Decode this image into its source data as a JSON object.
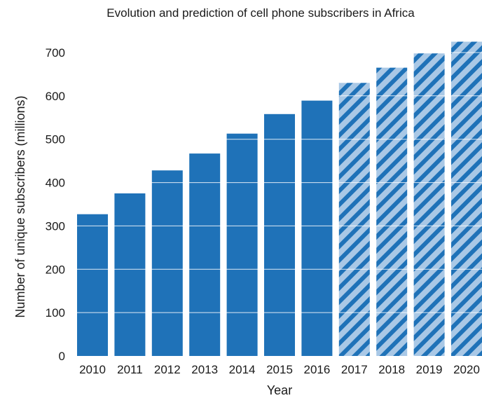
{
  "chart_data": {
    "type": "bar",
    "title": "Evolution and prediction of cell phone subscribers in Africa",
    "xlabel": "Year",
    "ylabel": "Number of unique subscribers (millions)",
    "categories": [
      "2010",
      "2011",
      "2012",
      "2013",
      "2014",
      "2015",
      "2016",
      "2017",
      "2018",
      "2019",
      "2020"
    ],
    "values": [
      327,
      375,
      428,
      467,
      513,
      558,
      589,
      630,
      665,
      698,
      725
    ],
    "predicted": [
      false,
      false,
      false,
      false,
      false,
      false,
      false,
      true,
      true,
      true,
      true
    ],
    "ylim": [
      0,
      700
    ],
    "yticks": [
      0,
      100,
      200,
      300,
      400,
      500,
      600,
      700
    ],
    "grid": true,
    "bar_color": "#1f72b8",
    "hatch_color": "#a9c8e6",
    "gridline_color": "#ffffff"
  }
}
